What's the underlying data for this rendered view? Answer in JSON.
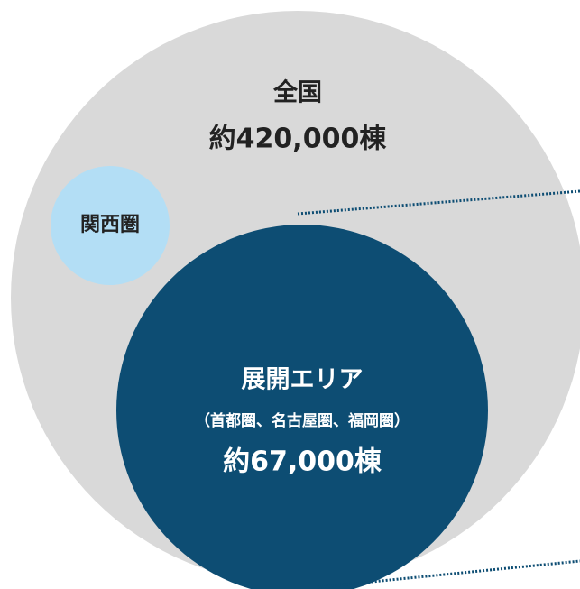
{
  "nation": {
    "label": "全国",
    "count": "約420,000棟"
  },
  "kansai": {
    "label": "関西圏"
  },
  "area": {
    "label": "展開エリア",
    "detail": "（首都圏、名古屋圏、福岡圏）",
    "count": "約67,000棟"
  }
}
